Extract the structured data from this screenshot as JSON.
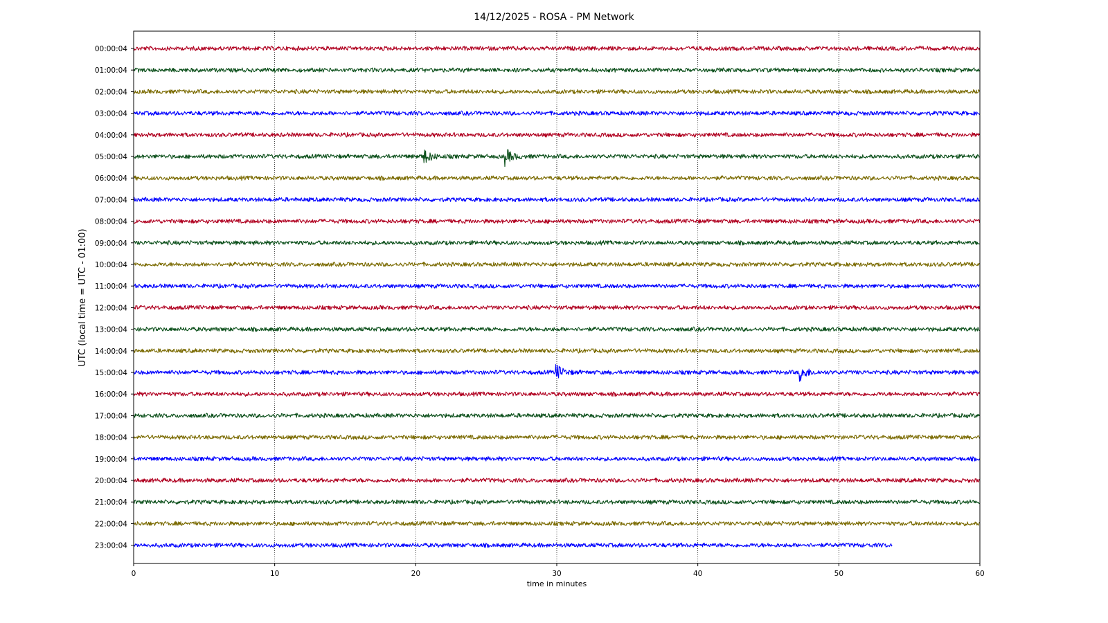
{
  "chart_data": {
    "type": "line",
    "title": "14/12/2025 - ROSA - PM Network",
    "xlabel": "time in minutes",
    "ylabel": "UTC (local time = UTC - 01:00)",
    "xlim": [
      0,
      60
    ],
    "x_ticks": [
      0,
      10,
      20,
      30,
      40,
      50,
      60
    ],
    "grid": "vertical dotted",
    "colors": [
      "#b00020",
      "#0b4f1a",
      "#7a6a00",
      "#0000ff"
    ],
    "series": [
      {
        "name": "00:00:04",
        "x_end": 60,
        "events": []
      },
      {
        "name": "01:00:04",
        "x_end": 60,
        "events": []
      },
      {
        "name": "02:00:04",
        "x_end": 60,
        "events": []
      },
      {
        "name": "03:00:04",
        "x_end": 60,
        "events": []
      },
      {
        "name": "04:00:04",
        "x_end": 60,
        "events": []
      },
      {
        "name": "05:00:04",
        "x_end": 60,
        "events": [
          20.5,
          26.3
        ]
      },
      {
        "name": "06:00:04",
        "x_end": 60,
        "events": []
      },
      {
        "name": "07:00:04",
        "x_end": 60,
        "events": []
      },
      {
        "name": "08:00:04",
        "x_end": 60,
        "events": []
      },
      {
        "name": "09:00:04",
        "x_end": 60,
        "events": []
      },
      {
        "name": "10:00:04",
        "x_end": 60,
        "events": []
      },
      {
        "name": "11:00:04",
        "x_end": 60,
        "events": []
      },
      {
        "name": "12:00:04",
        "x_end": 60,
        "events": []
      },
      {
        "name": "13:00:04",
        "x_end": 60,
        "events": []
      },
      {
        "name": "14:00:04",
        "x_end": 60,
        "events": []
      },
      {
        "name": "15:00:04",
        "x_end": 60,
        "events": [
          29.9,
          47.2
        ]
      },
      {
        "name": "16:00:04",
        "x_end": 60,
        "events": []
      },
      {
        "name": "17:00:04",
        "x_end": 60,
        "events": []
      },
      {
        "name": "18:00:04",
        "x_end": 60,
        "events": []
      },
      {
        "name": "19:00:04",
        "x_end": 60,
        "events": []
      },
      {
        "name": "20:00:04",
        "x_end": 60,
        "events": []
      },
      {
        "name": "21:00:04",
        "x_end": 60,
        "events": []
      },
      {
        "name": "22:00:04",
        "x_end": 60,
        "events": []
      },
      {
        "name": "23:00:04",
        "x_end": 53.8,
        "events": []
      }
    ]
  }
}
